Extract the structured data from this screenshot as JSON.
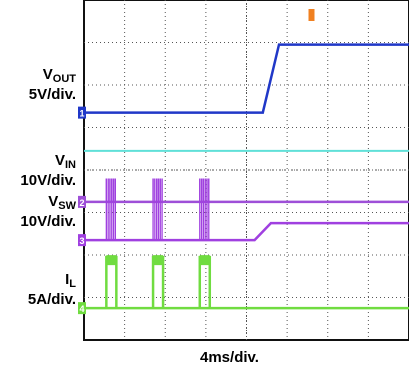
{
  "chart_data": {
    "type": "line",
    "title": "",
    "xlabel": "4ms/div.",
    "grid": true,
    "x_range_divisions": [
      0,
      8
    ],
    "y_range_divisions": [
      0,
      8
    ],
    "colors": {
      "vout": "#2038c8",
      "teal": "#60e0d8",
      "vin": "#9e4fd8",
      "vsw": "#a040e0",
      "il": "#70dc40",
      "trigger": "#f08020",
      "grid": "#555555"
    },
    "channels": [
      {
        "key": "vout",
        "label_main": "V",
        "label_sub": "OUT",
        "scale": "5V/div.",
        "marker": "1"
      },
      {
        "key": "vin",
        "label_main": "V",
        "label_sub": "IN",
        "scale": "10V/div.",
        "marker": "2"
      },
      {
        "key": "vsw",
        "label_main": "V",
        "label_sub": "SW",
        "scale": "10V/div.",
        "marker": "3"
      },
      {
        "key": "il",
        "label_main": "I",
        "label_sub": "L",
        "scale": "5A/div.",
        "marker": "4"
      }
    ],
    "series": [
      {
        "key": "vout",
        "points": [
          [
            0,
            5.35
          ],
          [
            4.4,
            5.35
          ],
          [
            4.8,
            6.95
          ],
          [
            8.0,
            6.95
          ]
        ]
      },
      {
        "key": "teal",
        "points": [
          [
            0,
            4.45
          ],
          [
            8.0,
            4.45
          ]
        ]
      },
      {
        "key": "vin",
        "points": [
          [
            0,
            3.25
          ],
          [
            8.0,
            3.25
          ]
        ],
        "bursts_x": [
          0.55,
          1.7,
          2.85
        ],
        "burst_top": 3.8
      },
      {
        "key": "vsw",
        "points": [
          [
            0,
            2.35
          ],
          [
            4.2,
            2.35
          ],
          [
            4.6,
            2.75
          ],
          [
            8.0,
            2.75
          ]
        ],
        "bursts_x": [
          0.55,
          1.7,
          2.85
        ],
        "burst_top": 3.8
      },
      {
        "key": "il",
        "points": [
          [
            0,
            0.75
          ],
          [
            8.0,
            0.75
          ]
        ],
        "pulses_x": [
          0.55,
          1.7,
          2.85
        ],
        "pulse_top": 1.95
      }
    ]
  }
}
